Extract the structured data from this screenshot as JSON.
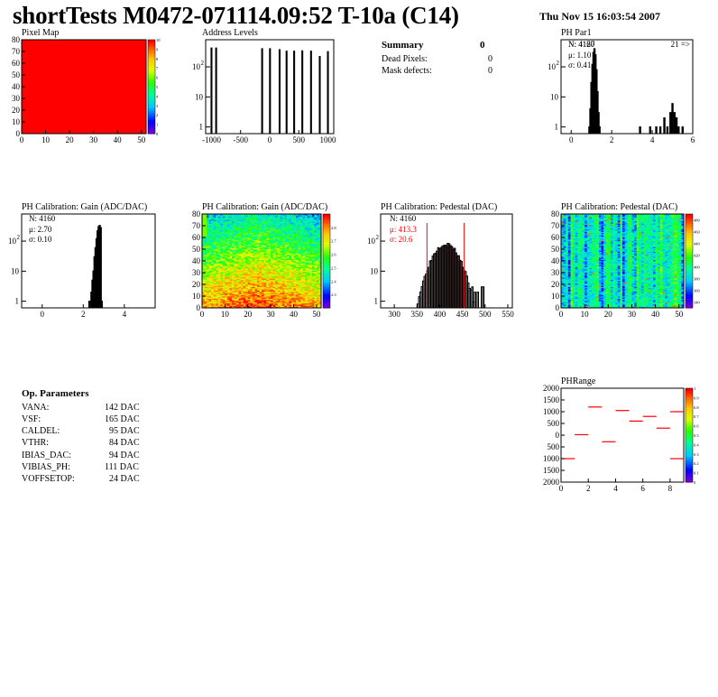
{
  "header": {
    "title": "shortTests M0472-071114.09:52 T-10a (C14)",
    "date": "Thu Nov 15 16:03:54 2007"
  },
  "summary": {
    "title": "Summary",
    "total": "0",
    "rows": [
      {
        "label": "Dead Pixels:",
        "value": "0"
      },
      {
        "label": "Mask defects:",
        "value": "0"
      }
    ]
  },
  "op_parameters": {
    "title": "Op. Parameters",
    "rows": [
      {
        "name": "VANA:",
        "value": "142 DAC"
      },
      {
        "name": "VSF:",
        "value": "165 DAC"
      },
      {
        "name": "CALDEL:",
        "value": "95 DAC"
      },
      {
        "name": "VTHR:",
        "value": "84 DAC"
      },
      {
        "name": "IBIAS_DAC:",
        "value": "94 DAC"
      },
      {
        "name": "VIBIAS_PH:",
        "value": "111 DAC"
      },
      {
        "name": "VOFFSETOP:",
        "value": "24 DAC"
      }
    ]
  },
  "chart_data": [
    {
      "id": "pixel-map",
      "type": "heatmap",
      "title": "Pixel Map",
      "xlim": [
        0,
        52
      ],
      "ylim": [
        0,
        80
      ],
      "xticks": [
        "0",
        "10",
        "20",
        "30",
        "40",
        "50"
      ],
      "yticks": [
        "0",
        "10",
        "20",
        "30",
        "40",
        "50",
        "60",
        "70",
        "80"
      ],
      "zlim": [
        0,
        10
      ],
      "zticks": [
        "0",
        "1",
        "2",
        "3",
        "4",
        "5",
        "6",
        "7",
        "8",
        "9",
        "10"
      ],
      "uniform_value": 10,
      "colors": {
        "fill": "#ff0000"
      }
    },
    {
      "id": "address-levels",
      "type": "bar",
      "title": "Address Levels",
      "log_y": true,
      "xlim": [
        -1100,
        1100
      ],
      "ylim": [
        0.6,
        800
      ],
      "xticks": [
        "-1000",
        "-500",
        "0",
        "500",
        "1000"
      ],
      "yticks": [
        "1",
        "10",
        "10^2"
      ],
      "spikes": [
        {
          "x": -1000,
          "y": 420
        },
        {
          "x": -920,
          "y": 420
        },
        {
          "x": -130,
          "y": 400
        },
        {
          "x": 5,
          "y": 400
        },
        {
          "x": 170,
          "y": 370
        },
        {
          "x": 290,
          "y": 330
        },
        {
          "x": 420,
          "y": 330
        },
        {
          "x": 560,
          "y": 340
        },
        {
          "x": 710,
          "y": 330
        },
        {
          "x": 860,
          "y": 220
        },
        {
          "x": 1000,
          "y": 320
        }
      ]
    },
    {
      "id": "ph-par1",
      "type": "bar",
      "title": "PH Par1",
      "log_y": true,
      "xlim": [
        -0.5,
        6
      ],
      "ylim": [
        0.6,
        800
      ],
      "xticks": [
        "0",
        "2",
        "4",
        "6"
      ],
      "yticks": [
        "1",
        "10",
        "10^2"
      ],
      "stats": {
        "n": "N: 4127",
        "mean": "μ: 1.10",
        "sigma": "σ: 0.41",
        "overflow": "21 =>"
      },
      "overlay_text": "N: 4160",
      "bins": [
        {
          "x": 0.9,
          "y": 1
        },
        {
          "x": 0.95,
          "y": 4
        },
        {
          "x": 1.0,
          "y": 30
        },
        {
          "x": 1.05,
          "y": 120
        },
        {
          "x": 1.1,
          "y": 300
        },
        {
          "x": 1.15,
          "y": 400
        },
        {
          "x": 1.2,
          "y": 250
        },
        {
          "x": 1.25,
          "y": 80
        },
        {
          "x": 1.3,
          "y": 15
        },
        {
          "x": 1.35,
          "y": 3
        },
        {
          "x": 1.4,
          "y": 1
        },
        {
          "x": 3.4,
          "y": 1
        },
        {
          "x": 3.9,
          "y": 1
        },
        {
          "x": 4.2,
          "y": 1
        },
        {
          "x": 4.4,
          "y": 1
        },
        {
          "x": 4.6,
          "y": 2
        },
        {
          "x": 4.75,
          "y": 1
        },
        {
          "x": 4.9,
          "y": 3
        },
        {
          "x": 5.0,
          "y": 6
        },
        {
          "x": 5.1,
          "y": 3
        },
        {
          "x": 5.2,
          "y": 2
        },
        {
          "x": 5.3,
          "y": 1
        },
        {
          "x": 5.5,
          "y": 1
        }
      ]
    },
    {
      "id": "ph-gain-hist",
      "type": "bar",
      "title": "PH Calibration: Gain (ADC/DAC)",
      "log_y": true,
      "xlim": [
        -1,
        5.5
      ],
      "ylim": [
        0.6,
        800
      ],
      "xticks": [
        "0",
        "2",
        "4"
      ],
      "yticks": [
        "1",
        "10",
        "10^2"
      ],
      "stats": {
        "n": "N: 4160",
        "mean": "μ: 2.70",
        "sigma": "σ: 0.10"
      },
      "bins": [
        {
          "x": 2.3,
          "y": 1
        },
        {
          "x": 2.4,
          "y": 2
        },
        {
          "x": 2.45,
          "y": 5
        },
        {
          "x": 2.5,
          "y": 10
        },
        {
          "x": 2.55,
          "y": 30
        },
        {
          "x": 2.6,
          "y": 60
        },
        {
          "x": 2.65,
          "y": 120
        },
        {
          "x": 2.7,
          "y": 220
        },
        {
          "x": 2.75,
          "y": 300
        },
        {
          "x": 2.8,
          "y": 330
        },
        {
          "x": 2.85,
          "y": 280
        },
        {
          "x": 2.9,
          "y": 1
        }
      ]
    },
    {
      "id": "ph-gain-map",
      "type": "heatmap",
      "title": "PH Calibration: Gain (ADC/DAC)",
      "xlim": [
        0,
        52
      ],
      "ylim": [
        0,
        80
      ],
      "xticks": [
        "0",
        "10",
        "20",
        "30",
        "40",
        "50"
      ],
      "yticks": [
        "0",
        "10",
        "20",
        "30",
        "40",
        "50",
        "60",
        "70",
        "80"
      ],
      "zlim": [
        2.2,
        2.9
      ],
      "zticks": [
        "2.3",
        "2.4",
        "2.5",
        "2.6",
        "2.7",
        "2.8"
      ],
      "pattern": "high at bottom rows, lower toward top"
    },
    {
      "id": "ph-pedestal-hist",
      "type": "bar",
      "title": "PH Calibration: Pedestal (DAC)",
      "log_y": true,
      "xlim": [
        270,
        560
      ],
      "ylim": [
        0.6,
        800
      ],
      "xticks": [
        "300",
        "350",
        "400",
        "450",
        "500",
        "550"
      ],
      "yticks": [
        "1",
        "10",
        "10^2"
      ],
      "stats": {
        "n": "N: 4160",
        "mean": "μ: 413.3",
        "sigma": "σ: 20.6"
      },
      "cut_lines": [
        372,
        454
      ],
      "colors": {
        "stats_accent": "#ff0000",
        "fill": "#cc0000"
      },
      "distribution": {
        "mean": 413.3,
        "sigma": 20.6,
        "peak": 80
      }
    },
    {
      "id": "ph-pedestal-map",
      "type": "heatmap",
      "title": "PH Calibration: Pedestal (DAC)",
      "xlim": [
        0,
        52
      ],
      "ylim": [
        0,
        80
      ],
      "xticks": [
        "0",
        "10",
        "20",
        "30",
        "40",
        "50"
      ],
      "yticks": [
        "0",
        "10",
        "20",
        "30",
        "40",
        "50",
        "60",
        "70",
        "80"
      ],
      "zlim": [
        330,
        490
      ],
      "zticks": [
        "340",
        "360",
        "380",
        "400",
        "420",
        "440",
        "460",
        "480"
      ],
      "pattern": "mostly cyan-green with vertical streaks"
    },
    {
      "id": "ph-range",
      "type": "scatter",
      "title": "PHRange",
      "xlim": [
        0,
        9
      ],
      "ylim": [
        -2000,
        2000
      ],
      "xticks": [
        "0",
        "2",
        "4",
        "6",
        "8"
      ],
      "yticks": [
        "2000",
        "1500",
        "1000",
        "500",
        "0",
        "500",
        "1000",
        "1500",
        "2000"
      ],
      "zticks": [
        "0",
        "0.1",
        "0.2",
        "0.3",
        "0.4",
        "0.5",
        "0.6",
        "0.7",
        "0.8",
        "0.9",
        "1"
      ],
      "segments": [
        {
          "x": 0.5,
          "y": -1000
        },
        {
          "x": 1.5,
          "y": 20
        },
        {
          "x": 2.5,
          "y": 1200
        },
        {
          "x": 3.5,
          "y": -280
        },
        {
          "x": 4.5,
          "y": 1050
        },
        {
          "x": 5.5,
          "y": 600
        },
        {
          "x": 6.5,
          "y": 800
        },
        {
          "x": 7.5,
          "y": 300
        },
        {
          "x": 8.5,
          "y": 1000
        },
        {
          "x": 8.5,
          "y": -1000
        }
      ],
      "colors": {
        "segment": "#ff0000"
      }
    }
  ]
}
